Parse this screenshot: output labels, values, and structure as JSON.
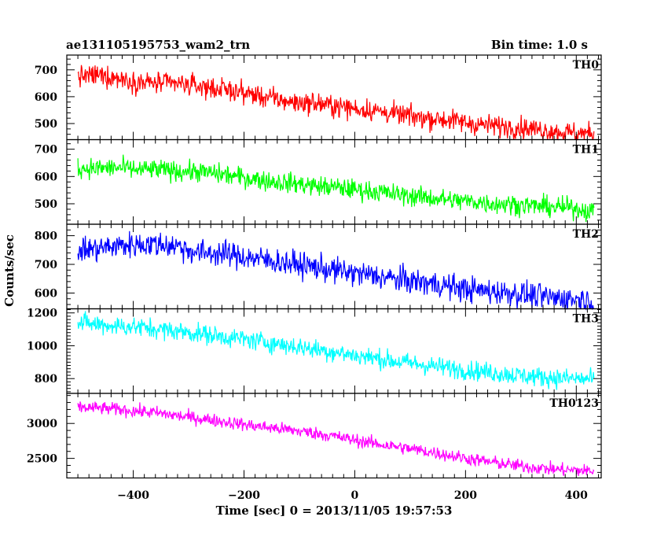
{
  "chart_data": {
    "type": "line",
    "title": "ae131105195753_wam2_trn",
    "bin_time": "Bin time: 1.0 s",
    "xlabel": "Time [sec] 0 = 2013/11/05 19:57:53",
    "ylabel": "Counts/sec",
    "xlim": [
      -520,
      445
    ],
    "x_range": [
      -500,
      432
    ],
    "x_ticks": [
      -400,
      -200,
      0,
      200,
      400
    ],
    "grid": false,
    "panels": [
      {
        "name": "TH0",
        "color": "#ff0000",
        "ylim": [
          440,
          755
        ],
        "y_ticks": [
          500,
          600,
          700
        ],
        "values": [
          675,
          680,
          670,
          655,
          650,
          648,
          640,
          630,
          620,
          605,
          590,
          578,
          575,
          565,
          555,
          548,
          535,
          525,
          518,
          510,
          498,
          492,
          487,
          480,
          470,
          465,
          462
        ],
        "noise": 28
      },
      {
        "name": "TH1",
        "color": "#00ff00",
        "ylim": [
          425,
          735
        ],
        "y_ticks": [
          500,
          600,
          700
        ],
        "values": [
          630,
          630,
          632,
          625,
          625,
          620,
          618,
          610,
          600,
          590,
          580,
          574,
          565,
          560,
          552,
          545,
          535,
          527,
          520,
          512,
          508,
          500,
          498,
          492,
          488,
          485,
          470
        ],
        "noise": 26
      },
      {
        "name": "TH2",
        "color": "#0000ff",
        "ylim": [
          545,
          840
        ],
        "y_ticks": [
          600,
          700,
          800
        ],
        "values": [
          750,
          755,
          765,
          770,
          770,
          765,
          740,
          740,
          730,
          720,
          710,
          700,
          690,
          678,
          668,
          660,
          648,
          640,
          632,
          620,
          610,
          605,
          600,
          590,
          582,
          580,
          572
        ],
        "noise": 32
      },
      {
        "name": "TH3",
        "color": "#00ffff",
        "ylim": [
          710,
          1225
        ],
        "y_ticks": [
          800,
          1000,
          1200
        ],
        "values": [
          1140,
          1130,
          1120,
          1115,
          1100,
          1090,
          1075,
          1060,
          1045,
          1030,
          1012,
          995,
          978,
          960,
          940,
          925,
          905,
          890,
          875,
          860,
          848,
          835,
          822,
          812,
          805,
          800,
          795
        ],
        "noise": 42
      },
      {
        "name": "TH0123",
        "color": "#ff00ff",
        "ylim": [
          2220,
          3430
        ],
        "y_ticks": [
          2500,
          3000
        ],
        "values": [
          3230,
          3220,
          3200,
          3175,
          3150,
          3110,
          3075,
          3040,
          3000,
          2960,
          2930,
          2895,
          2860,
          2810,
          2760,
          2710,
          2670,
          2625,
          2580,
          2530,
          2480,
          2440,
          2400,
          2370,
          2345,
          2330,
          2320
        ],
        "noise": 65
      }
    ]
  }
}
